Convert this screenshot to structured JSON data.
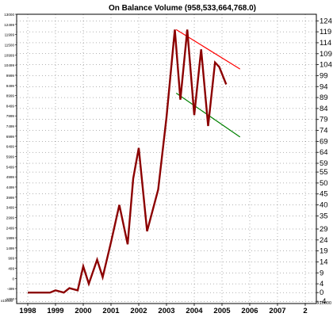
{
  "chart_data": {
    "type": "line",
    "title": "On Balance Volume (958,533,664,768.0)",
    "xlabel": "",
    "ylabel": "",
    "x_ticks": [
      "1998",
      "1999",
      "2000",
      "2001",
      "2002",
      "2003",
      "2004",
      "2005",
      "2006",
      "2007",
      "2"
    ],
    "right_ticks": [
      124,
      119,
      114,
      109,
      104,
      99,
      94,
      89,
      84,
      79,
      74,
      69,
      64,
      59,
      55,
      50,
      45,
      40,
      35,
      29,
      24,
      19,
      14,
      9,
      4,
      0,
      -4
    ],
    "right_unit_label": "x10000",
    "left_ticks": [
      "13000",
      "12499",
      "11999",
      "11500",
      "10999",
      "10499",
      "9999",
      "9499",
      "8999",
      "8499",
      "7999",
      "7499",
      "6999",
      "6499",
      "5999",
      "5499",
      "4999",
      "4499",
      "3999",
      "3499",
      "2999",
      "2499",
      "1999",
      "1499",
      "999",
      "499",
      "0",
      "-499",
      "-1000"
    ],
    "left_unit_label": "x10000",
    "ylim": [
      -5,
      127
    ],
    "xlim": [
      1997.6,
      2008.4
    ],
    "grid": true,
    "series": [
      {
        "color": "#8b0000",
        "x": [
          1998.0,
          1998.4,
          1998.8,
          1999.0,
          1999.3,
          1999.5,
          1999.8,
          2000.0,
          2000.2,
          2000.5,
          2000.7,
          2001.0,
          2001.3,
          2001.6,
          2001.8,
          2002.0,
          2002.3,
          2002.7,
          2003.0,
          2003.3,
          2003.5,
          2003.75,
          2004.0,
          2004.25,
          2004.5,
          2004.75,
          2004.9,
          2005.15
        ],
        "y": [
          0,
          0,
          0,
          1,
          0,
          2,
          1,
          12,
          4,
          15,
          7,
          23,
          40,
          22,
          52,
          66,
          28,
          47,
          80,
          120,
          88,
          120,
          81,
          111,
          76,
          105,
          103,
          95
        ]
      }
    ],
    "trendlines": [
      {
        "color": "#ff0000",
        "x": [
          2003.35,
          2005.65
        ],
        "y": [
          120,
          102
        ]
      },
      {
        "color": "#008000",
        "x": [
          2003.35,
          2005.65
        ],
        "y": [
          91,
          71
        ]
      }
    ]
  }
}
